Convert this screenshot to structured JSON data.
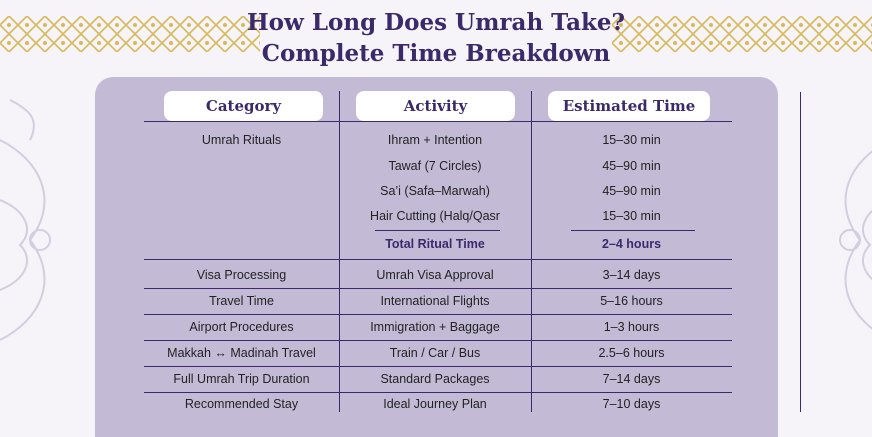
{
  "title": {
    "line1": "How Long Does Umrah Take?",
    "line2": "Complete Time Breakdown"
  },
  "headers": {
    "category": "Category",
    "activity": "Activity",
    "time": "Estimated Time"
  },
  "rituals": {
    "category": "Umrah Rituals",
    "rows": [
      {
        "activity": "Ihram + Intention",
        "time": "15–30 min"
      },
      {
        "activity": "Tawaf (7 Circles)",
        "time": "45–90 min"
      },
      {
        "activity": "Sa’i (Safa–Marwah)",
        "time": "45–90 min"
      },
      {
        "activity": "Hair Cutting (Halq/Qasr",
        "time": "15–30 min"
      }
    ],
    "total": {
      "activity": "Total Ritual Time",
      "time": "2–4 hours"
    }
  },
  "rows": [
    {
      "category": "Visa Processing",
      "activity": "Umrah Visa Approval",
      "time": "3–14 days"
    },
    {
      "category": "Travel Time",
      "activity": "International Flights",
      "time": "5–16 hours"
    },
    {
      "category": "Airport Procedures",
      "activity": "Immigration + Baggage",
      "time": "1–3 hours"
    },
    {
      "category": "Makkah ↔ Madinah Travel",
      "activity": "Train / Car / Bus",
      "time": "2.5–6 hours"
    },
    {
      "category": "Full Umrah Trip Duration",
      "activity": "Standard Packages",
      "time": "7–14 days"
    },
    {
      "category": "Recommended Stay",
      "activity": "Ideal Journey Plan",
      "time": "7–10 days"
    }
  ],
  "colors": {
    "accent": "#3b2a6b",
    "panel": "#c3bbd6",
    "gold": "#d8b95a",
    "background": "#f6f4f8"
  }
}
